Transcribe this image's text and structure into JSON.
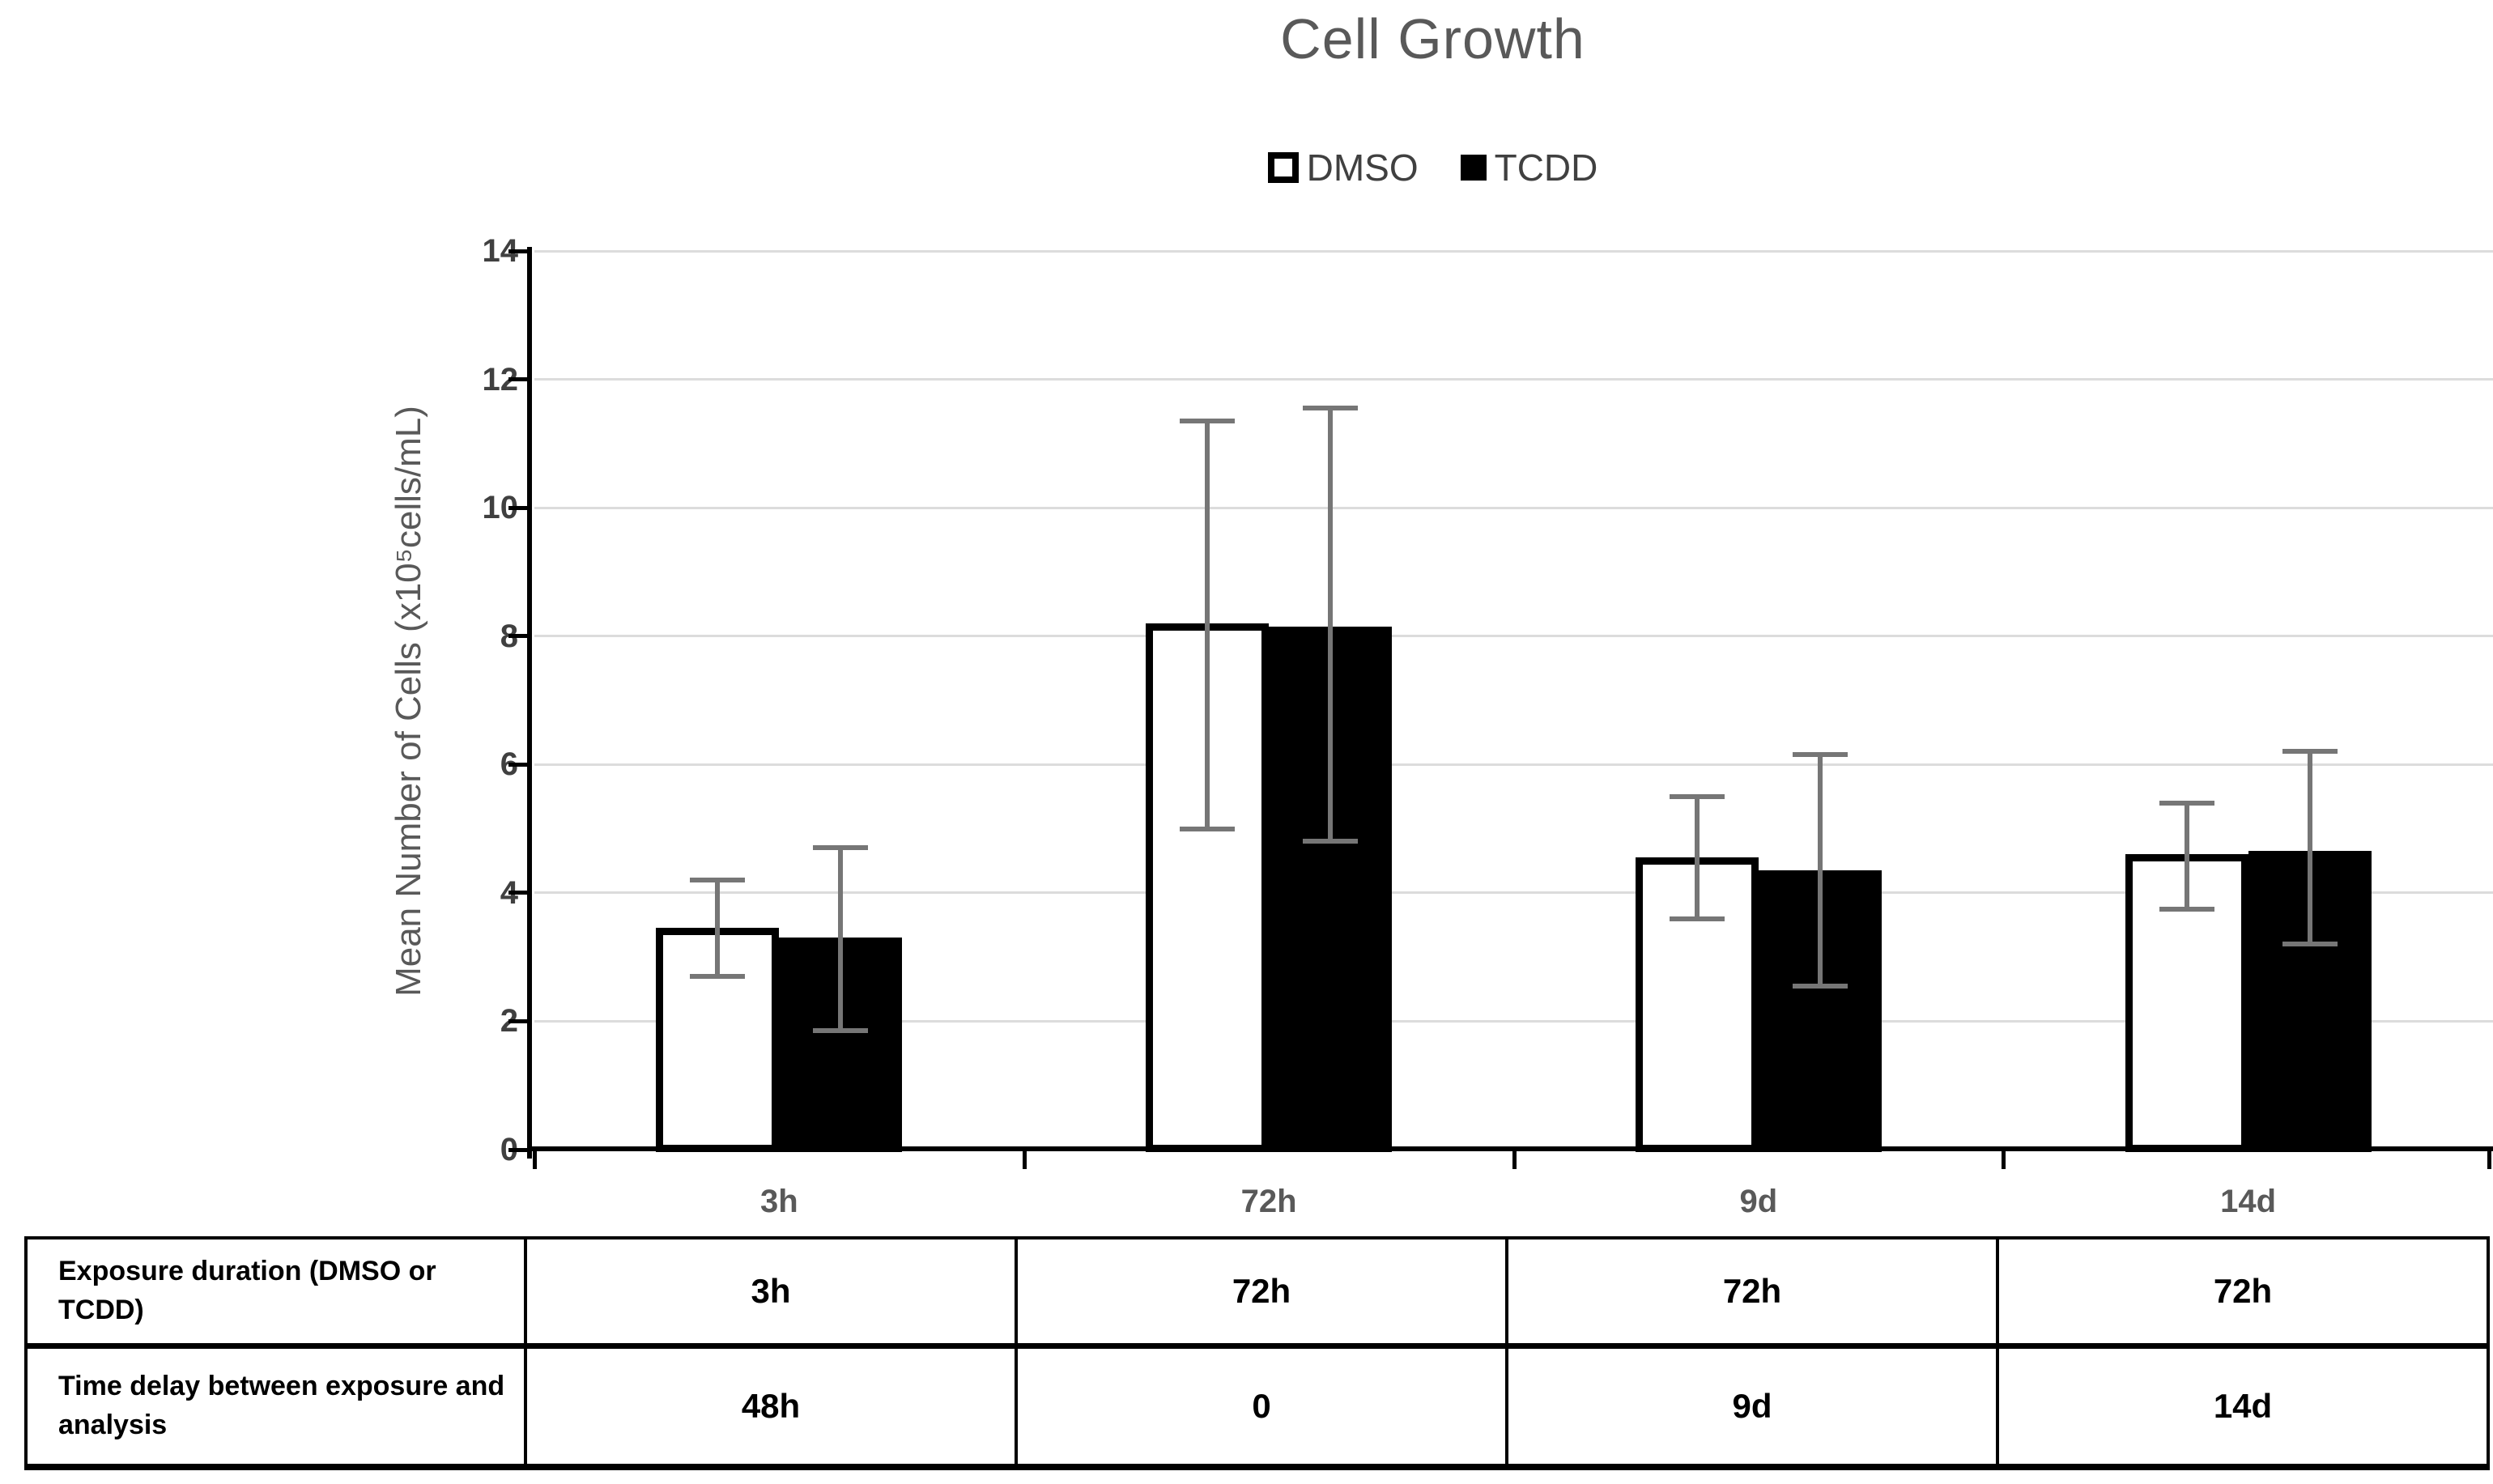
{
  "title": "Cell Growth",
  "legend": [
    {
      "label": "DMSO",
      "marker": "outlined-white-square"
    },
    {
      "label": "TCDD",
      "marker": "filled-black-square"
    }
  ],
  "chart_data": {
    "type": "bar",
    "title": "Cell Growth",
    "categories": [
      "3h",
      "72h",
      "9d",
      "14d"
    ],
    "series": [
      {
        "name": "DMSO",
        "fill": "#ffffff",
        "border": "#000000",
        "values": [
          3.45,
          8.2,
          4.55,
          4.6
        ],
        "error_high": [
          4.2,
          11.35,
          5.5,
          5.4
        ],
        "error_low": [
          2.7,
          5.0,
          3.6,
          3.75
        ]
      },
      {
        "name": "TCDD",
        "fill": "#000000",
        "border": "#000000",
        "values": [
          3.3,
          8.15,
          4.35,
          4.65
        ],
        "error_high": [
          4.7,
          11.55,
          6.15,
          6.2
        ],
        "error_low": [
          1.85,
          4.8,
          2.55,
          3.2
        ]
      }
    ],
    "xlabel": "",
    "ylabel": "Mean Number of Cells (x10⁵cells/mL)",
    "ylim": [
      0,
      14
    ],
    "yticks": [
      0,
      2,
      4,
      6,
      8,
      10,
      12,
      14
    ],
    "grid": true,
    "legend_position": "top-center",
    "error_bars": true
  },
  "table": {
    "rows": [
      {
        "label": "Exposure duration (DMSO or TCDD)",
        "values": [
          "3h",
          "72h",
          "72h",
          "72h"
        ]
      },
      {
        "label": "Time delay between exposure and analysis",
        "values": [
          "48h",
          "0",
          "9d",
          "14d"
        ]
      }
    ]
  },
  "colors": {
    "title_text": "#595959",
    "axis_tick_text": "#404040",
    "category_text": "#595959",
    "legend_text": "#404040",
    "gridline": "#dcdcdc",
    "axis_line": "#000000",
    "error_bar": "#767676",
    "dmso_fill": "#ffffff",
    "tcdd_fill": "#000000"
  }
}
